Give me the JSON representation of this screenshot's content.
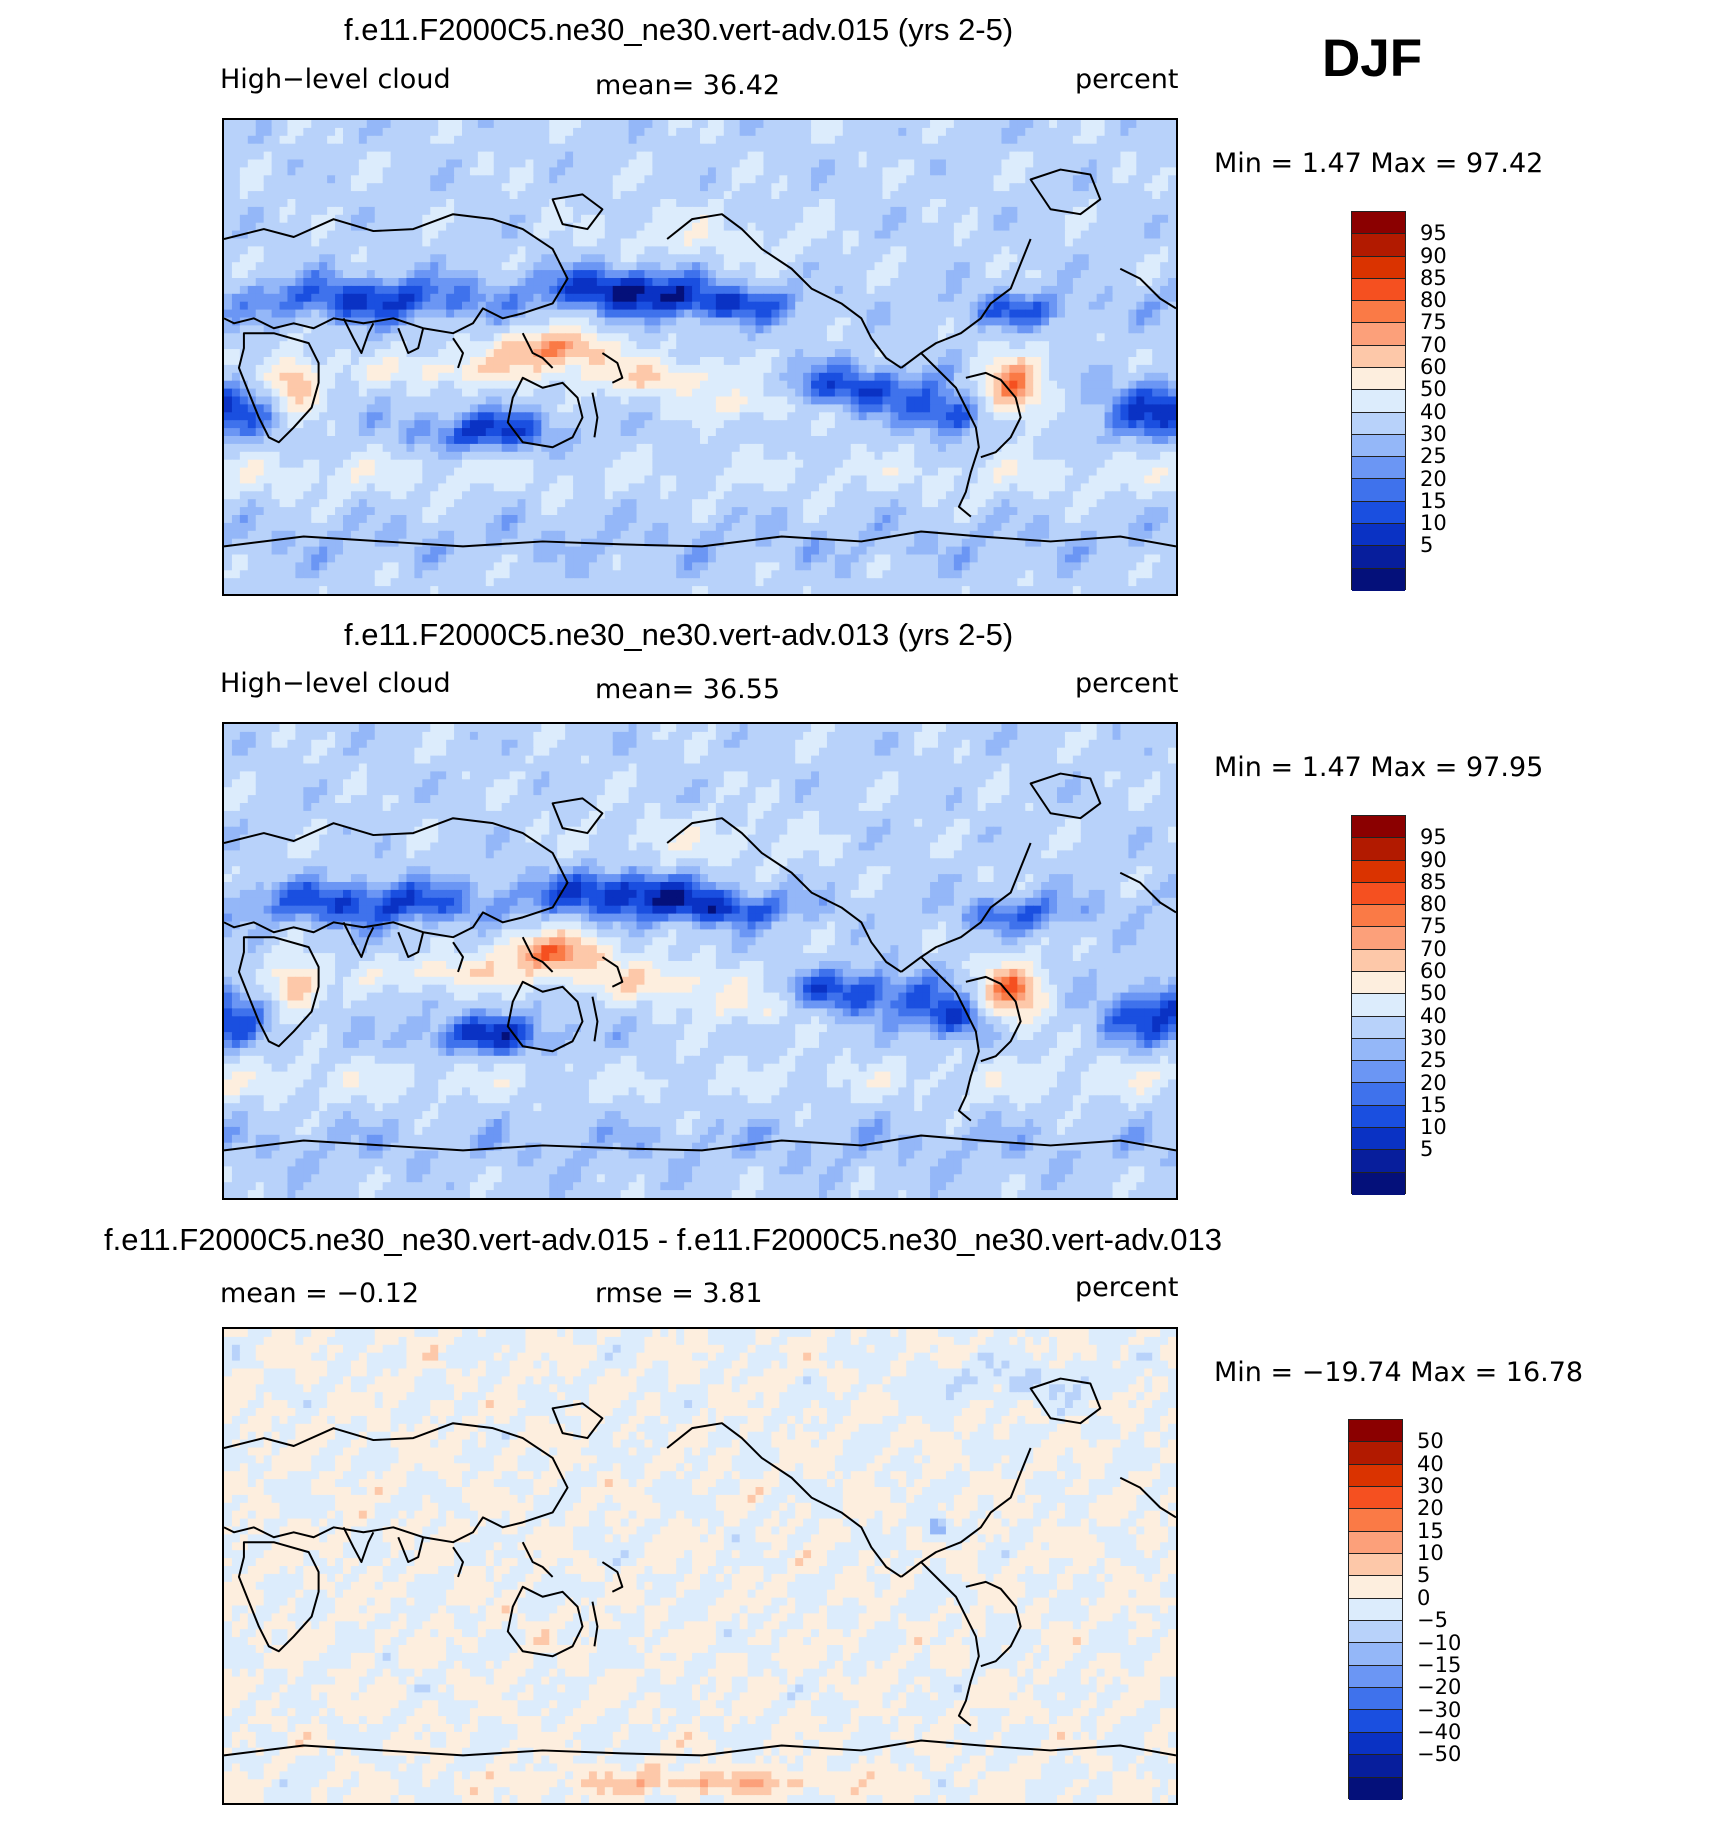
{
  "season": "DJF",
  "colors": {
    "abs_palette": [
      "#8b0000",
      "#b21a00",
      "#da3300",
      "#f55020",
      "#fa7a46",
      "#fca07a",
      "#fdc8a9",
      "#fdeede",
      "#dcecfc",
      "#b8d2fa",
      "#94b7f8",
      "#6b96f4",
      "#3f72ec",
      "#1a4fe0",
      "#0a32c4",
      "#071e9c",
      "#04107a"
    ],
    "diff_palette": [
      "#8b0000",
      "#b21a00",
      "#da3300",
      "#f55020",
      "#fa7a46",
      "#fca07a",
      "#fdc8a9",
      "#fdeede",
      "#dcecfc",
      "#b8d2fa",
      "#94b7f8",
      "#6b96f4",
      "#3f72ec",
      "#1a4fe0",
      "#0a32c4",
      "#071e9c",
      "#04107a"
    ],
    "coastline": "#000000"
  },
  "panels": [
    {
      "title": "f.e11.F2000C5.ne30_ne30.vert-adv.015 (yrs 2-5)",
      "left": "High−level cloud",
      "center": "mean=   36.42",
      "right": "percent",
      "minmax": "Min =     1.47  Max =    97.42",
      "levels": [
        "95",
        "90",
        "85",
        "80",
        "75",
        "70",
        "60",
        "50",
        "40",
        "30",
        "25",
        "20",
        "15",
        "10",
        "5"
      ],
      "palette": "abs",
      "field": "abs1"
    },
    {
      "title": "f.e11.F2000C5.ne30_ne30.vert-adv.013 (yrs 2-5)",
      "left": "High−level cloud",
      "center": "mean=   36.55",
      "right": "percent",
      "minmax": "Min =     1.47  Max =    97.95",
      "levels": [
        "95",
        "90",
        "85",
        "80",
        "75",
        "70",
        "60",
        "50",
        "40",
        "30",
        "25",
        "20",
        "15",
        "10",
        "5"
      ],
      "palette": "abs",
      "field": "abs2"
    },
    {
      "title": "f.e11.F2000C5.ne30_ne30.vert-adv.015 - f.e11.F2000C5.ne30_ne30.vert-adv.013",
      "left": "mean  =   −0.12",
      "center": "rmse  =     3.81",
      "right": "percent",
      "minmax": "Min  = −19.74  Max  =    16.78",
      "levels": [
        "50",
        "40",
        "30",
        "20",
        "15",
        "10",
        "5",
        "0",
        "−5",
        "−10",
        "−15",
        "−20",
        "−30",
        "−40",
        "−50"
      ],
      "palette": "diff",
      "field": "diff"
    }
  ]
}
